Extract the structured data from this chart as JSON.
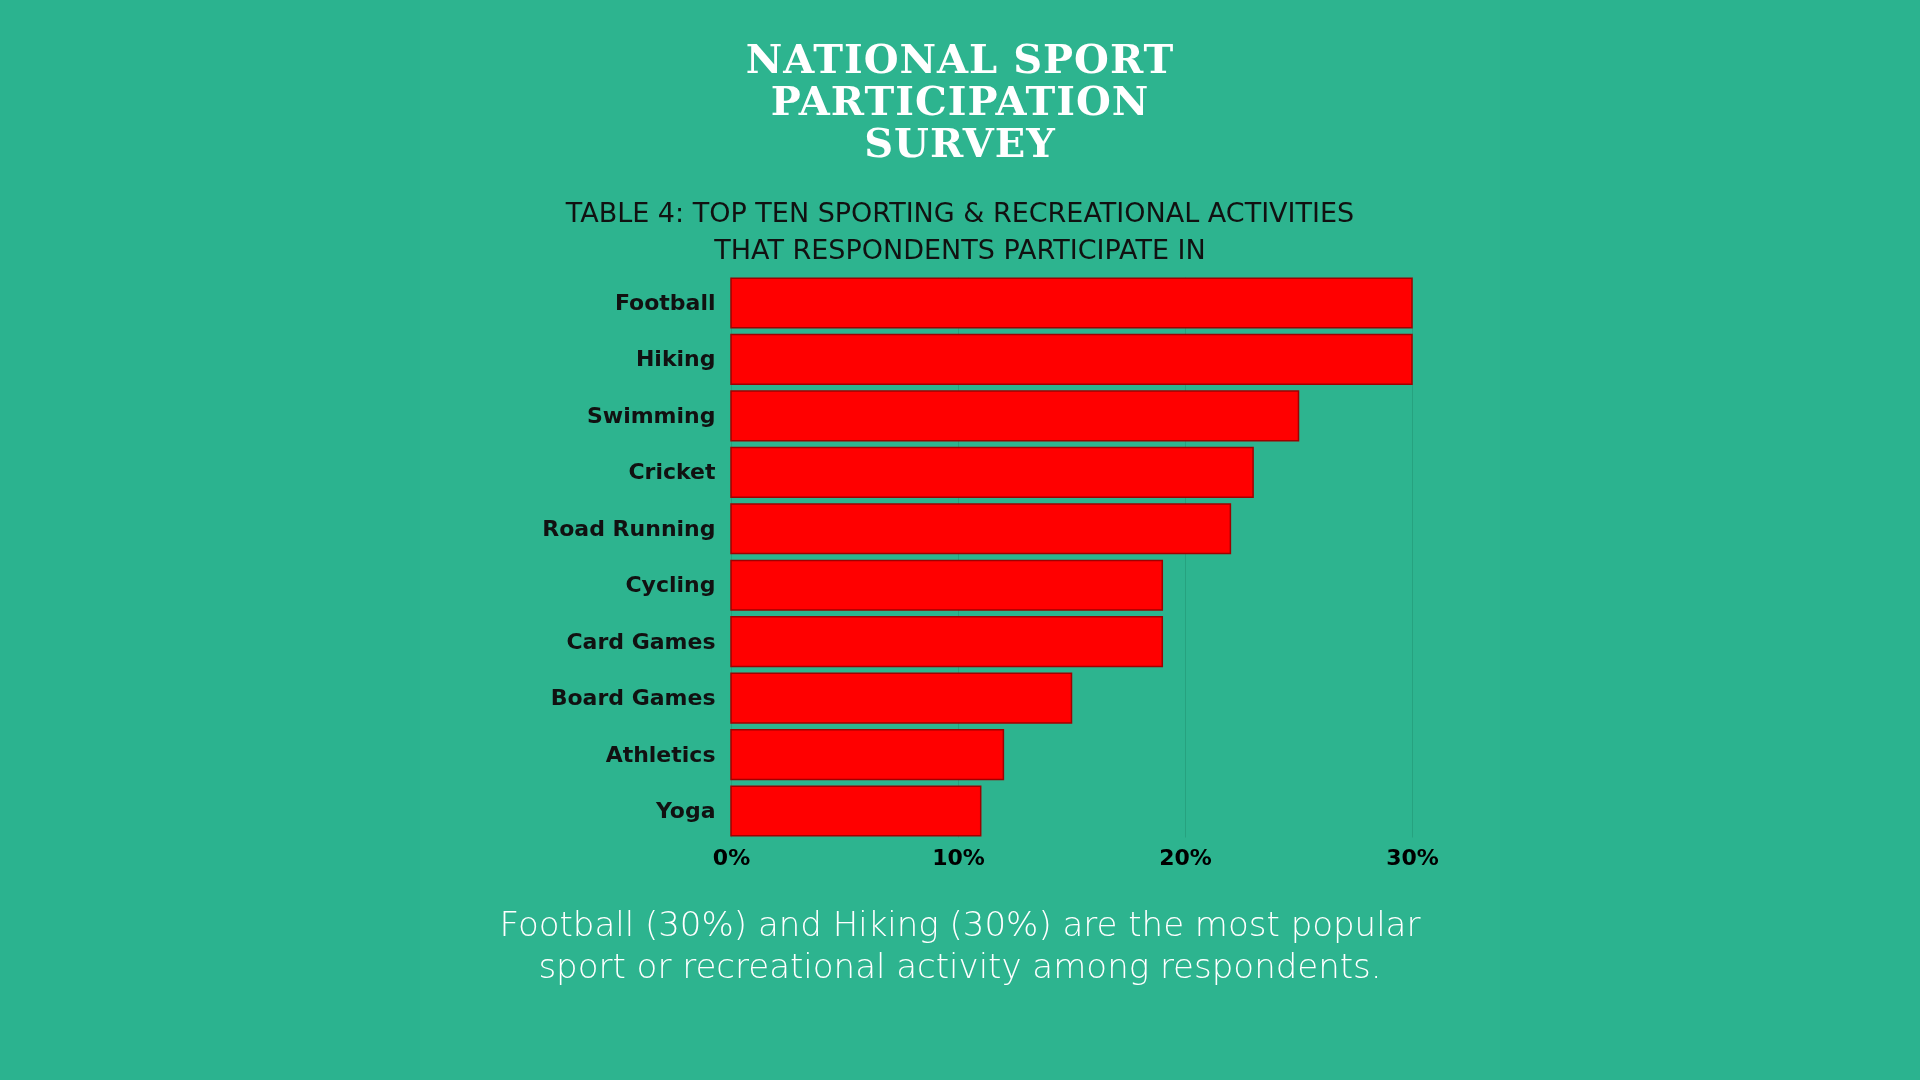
{
  "chart_data": {
    "type": "bar",
    "orientation": "horizontal",
    "title": "NATIONAL SPORT PARTICIPATION SURVEY",
    "subtitle": "TABLE 4: TOP TEN SPORTING & RECREATIONAL ACTIVITIES THAT RESPONDENTS PARTICIPATE IN",
    "categories": [
      "Football",
      "Hiking",
      "Swimming",
      "Cricket",
      "Road Running",
      "Cycling",
      "Card Games",
      "Board Games",
      "Athletics",
      "Yoga"
    ],
    "values": [
      30,
      30,
      25,
      23,
      22,
      19,
      19,
      15,
      12,
      11
    ],
    "color": "#ff0000",
    "xlim": [
      0,
      30
    ],
    "xticks": [
      {
        "value": 0,
        "label": "0%"
      },
      {
        "value": 10,
        "label": "10%"
      },
      {
        "value": 20,
        "label": "20%"
      },
      {
        "value": 30,
        "label": "30%"
      }
    ],
    "grid": "x",
    "annotations": [
      "Football (30%) and Hiking (30%) are the most popular sport or recreational activity among respondents."
    ]
  }
}
